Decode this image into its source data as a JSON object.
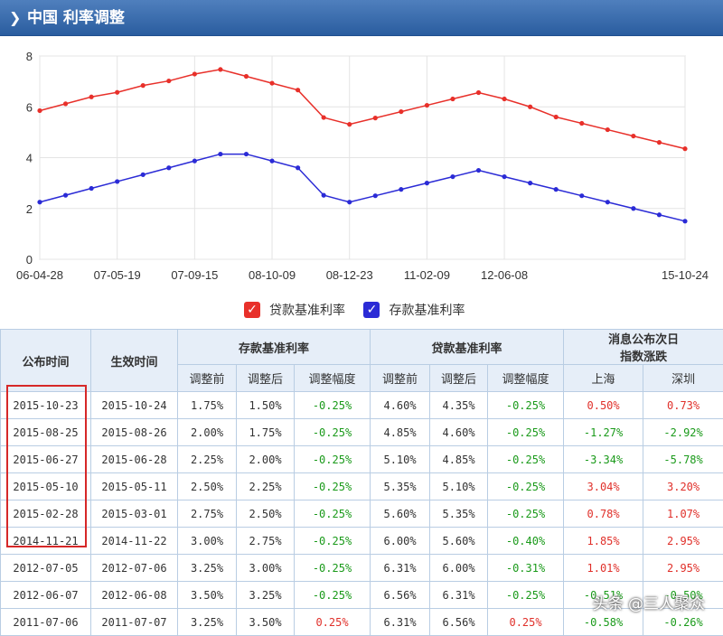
{
  "header": {
    "title": "中国 利率调整"
  },
  "chart_data": {
    "type": "line",
    "x_tick_labels": [
      "06-04-28",
      "07-05-19",
      "07-09-15",
      "08-10-09",
      "08-12-23",
      "11-02-09",
      "12-06-08",
      "15-10-24"
    ],
    "y_ticks": [
      0,
      2,
      4,
      6,
      8
    ],
    "ylim": [
      0,
      8
    ],
    "grid": true,
    "legend_position": "bottom-center",
    "series": [
      {
        "name": "贷款基准利率",
        "color": "#e8302a",
        "values": [
          5.85,
          6.12,
          6.39,
          6.57,
          6.84,
          7.02,
          7.29,
          7.47,
          7.2,
          6.93,
          6.66,
          5.58,
          5.31,
          5.56,
          5.81,
          6.06,
          6.31,
          6.56,
          6.31,
          6.0,
          5.6,
          5.35,
          5.1,
          4.85,
          4.6,
          4.35
        ]
      },
      {
        "name": "存款基准利率",
        "color": "#2b2bd6",
        "values": [
          2.25,
          2.52,
          2.79,
          3.06,
          3.33,
          3.6,
          3.87,
          4.14,
          4.14,
          3.87,
          3.6,
          2.52,
          2.25,
          2.5,
          2.75,
          3.0,
          3.25,
          3.5,
          3.25,
          3.0,
          2.75,
          2.5,
          2.25,
          2.0,
          1.75,
          1.5
        ]
      }
    ]
  },
  "table": {
    "headers": {
      "announce": "公布时间",
      "effective": "生效时间",
      "deposit": "存款基准利率",
      "loan": "贷款基准利率",
      "market_line1": "消息公布次日",
      "market_line2": "指数涨跌",
      "before": "调整前",
      "after": "调整后",
      "change": "调整幅度",
      "sh": "上海",
      "sz": "深圳"
    },
    "rows": [
      [
        "2015-10-23",
        "2015-10-24",
        "1.75%",
        "1.50%",
        "-0.25%",
        "4.60%",
        "4.35%",
        "-0.25%",
        "0.50%",
        "0.73%"
      ],
      [
        "2015-08-25",
        "2015-08-26",
        "2.00%",
        "1.75%",
        "-0.25%",
        "4.85%",
        "4.60%",
        "-0.25%",
        "-1.27%",
        "-2.92%"
      ],
      [
        "2015-06-27",
        "2015-06-28",
        "2.25%",
        "2.00%",
        "-0.25%",
        "5.10%",
        "4.85%",
        "-0.25%",
        "-3.34%",
        "-5.78%"
      ],
      [
        "2015-05-10",
        "2015-05-11",
        "2.50%",
        "2.25%",
        "-0.25%",
        "5.35%",
        "5.10%",
        "-0.25%",
        "3.04%",
        "3.20%"
      ],
      [
        "2015-02-28",
        "2015-03-01",
        "2.75%",
        "2.50%",
        "-0.25%",
        "5.60%",
        "5.35%",
        "-0.25%",
        "0.78%",
        "1.07%"
      ],
      [
        "2014-11-21",
        "2014-11-22",
        "3.00%",
        "2.75%",
        "-0.25%",
        "6.00%",
        "5.60%",
        "-0.40%",
        "1.85%",
        "2.95%"
      ],
      [
        "2012-07-05",
        "2012-07-06",
        "3.25%",
        "3.00%",
        "-0.25%",
        "6.31%",
        "6.00%",
        "-0.31%",
        "1.01%",
        "2.95%"
      ],
      [
        "2012-06-07",
        "2012-06-08",
        "3.50%",
        "3.25%",
        "-0.25%",
        "6.56%",
        "6.31%",
        "-0.25%",
        "-0.51%",
        "-0.50%"
      ],
      [
        "2011-07-06",
        "2011-07-07",
        "3.25%",
        "3.50%",
        "0.25%",
        "6.31%",
        "6.56%",
        "0.25%",
        "-0.58%",
        "-0.26%"
      ]
    ]
  },
  "watermark": "头条 @三人聚众"
}
